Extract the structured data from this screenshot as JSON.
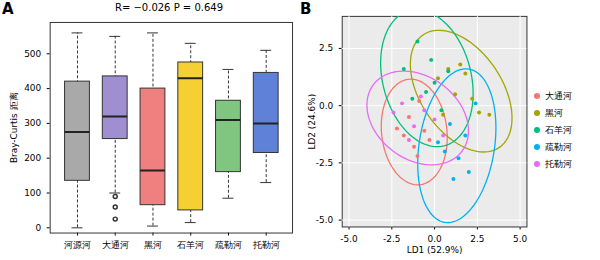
{
  "chart_data": [
    {
      "type": "box",
      "title": "A",
      "annotation": "R= −0.026 P = 0.649",
      "categories": [
        "河源河",
        "大通河",
        "黑河",
        "石羊河",
        "疏勒河",
        "托勒河"
      ],
      "whisker_low": [
        0,
        100,
        5,
        15,
        85,
        130
      ],
      "q1": [
        135,
        255,
        65,
        50,
        160,
        215
      ],
      "median": [
        275,
        320,
        165,
        430,
        310,
        300
      ],
      "q3": [
        420,
        435,
        400,
        475,
        365,
        445
      ],
      "whisker_high": [
        560,
        550,
        560,
        530,
        455,
        510
      ],
      "outliers": [
        [],
        [
          90,
          60,
          25
        ],
        [],
        [],
        [],
        []
      ],
      "colors": [
        "#a9a9a9",
        "#9f8fd0",
        "#f07f7f",
        "#f5d033",
        "#80c680",
        "#5f82d8"
      ],
      "y_label": "Bray-Curtis 距离",
      "ylim": [
        -15,
        590
      ],
      "yticks": [
        0,
        100,
        200,
        300,
        400,
        500
      ],
      "grid": false
    },
    {
      "type": "scatter",
      "title": "B",
      "x_label": "LD1 (52.9%)",
      "y_label": "LD2 (24.6%)",
      "xlim": [
        -5.4,
        5.4
      ],
      "xticks": [
        {
          "value": -5,
          "label": "-5.0"
        },
        {
          "value": -2.5,
          "label": "-2.5"
        },
        {
          "value": 0,
          "label": "0.0"
        },
        {
          "value": 2.5,
          "label": "2.5"
        },
        {
          "value": 5,
          "label": "5.0"
        }
      ],
      "ylim": [
        -5.3,
        3.9
      ],
      "yticks": [
        {
          "value": -5,
          "label": "-5.0"
        },
        {
          "value": -2.5,
          "label": "-2.5"
        },
        {
          "value": 0,
          "label": "0.0"
        },
        {
          "value": 2.5,
          "label": "2.5"
        }
      ],
      "grid": true,
      "legend": "right",
      "series": [
        {
          "name": "大通河",
          "color": "#F8766D",
          "x": [
            -2.2,
            -1.8,
            -1.5,
            -1.2,
            -0.9,
            -0.6,
            -0.3,
            -1.0
          ],
          "y": [
            -1.0,
            -1.3,
            -0.5,
            -1.8,
            0.2,
            -1.1,
            -1.5,
            -2.2
          ]
        },
        {
          "name": "黑河",
          "color": "#A3A500",
          "x": [
            0.2,
            0.8,
            1.2,
            1.8,
            2.2,
            2.6,
            0.5,
            1.5,
            3.2
          ],
          "y": [
            1.2,
            1.6,
            0.5,
            1.4,
            0.3,
            -0.3,
            -0.4,
            1.8,
            -0.4
          ]
        },
        {
          "name": "石羊河",
          "color": "#00BF7D",
          "x": [
            -1.8,
            -1.0,
            -0.5,
            0.0,
            0.4,
            -1.3,
            0.8,
            -0.2
          ],
          "y": [
            1.6,
            2.8,
            0.6,
            1.0,
            -0.2,
            0.3,
            1.5,
            2.0
          ]
        },
        {
          "name": "疏勒河",
          "color": "#00B0F6",
          "x": [
            0.2,
            0.9,
            1.4,
            2.0,
            2.4,
            0.6,
            1.8,
            1.1
          ],
          "y": [
            -1.6,
            -0.8,
            -2.3,
            -2.9,
            0.1,
            -2.0,
            -1.3,
            -3.2
          ]
        },
        {
          "name": "托勒河",
          "color": "#E76BF3",
          "x": [
            -2.4,
            -1.9,
            -1.2,
            -0.6,
            0.0,
            0.5,
            -1.5,
            -0.8
          ],
          "y": [
            -0.3,
            0.1,
            -0.9,
            -0.2,
            -0.6,
            -1.3,
            -1.5,
            0.4
          ]
        }
      ]
    }
  ]
}
